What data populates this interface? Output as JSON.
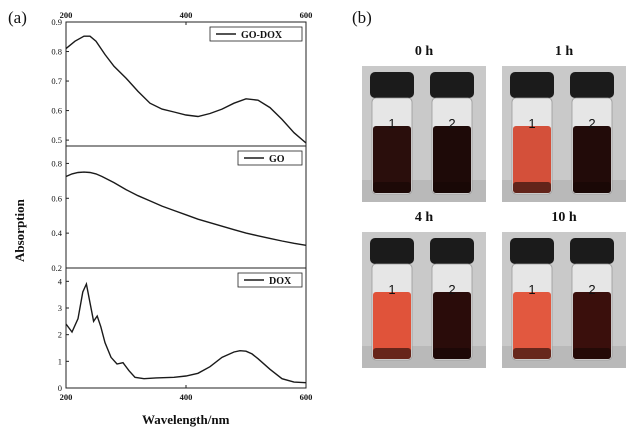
{
  "figure": {
    "panel_a_label": "(a)",
    "panel_b_label": "(b)"
  },
  "chart_data": [
    {
      "type": "line",
      "series": [
        {
          "name": "GO-DOX",
          "x": [
            200,
            215,
            230,
            240,
            250,
            265,
            280,
            300,
            320,
            340,
            360,
            380,
            400,
            420,
            440,
            460,
            480,
            500,
            520,
            540,
            560,
            580,
            600
          ],
          "values": [
            0.81,
            0.835,
            0.852,
            0.852,
            0.835,
            0.79,
            0.75,
            0.71,
            0.665,
            0.625,
            0.605,
            0.595,
            0.585,
            0.58,
            0.59,
            0.605,
            0.625,
            0.64,
            0.635,
            0.61,
            0.57,
            0.525,
            0.49
          ]
        }
      ],
      "xlim": [
        200,
        600
      ],
      "ylim": [
        0.48,
        0.9
      ],
      "yticks": [
        0.5,
        0.6,
        0.7,
        0.8,
        0.9
      ],
      "xticks_top": [
        200,
        400,
        600
      ],
      "legend": "top-right"
    },
    {
      "type": "line",
      "series": [
        {
          "name": "GO",
          "x": [
            200,
            210,
            220,
            230,
            240,
            250,
            260,
            280,
            300,
            320,
            340,
            360,
            380,
            400,
            420,
            440,
            460,
            480,
            500,
            520,
            540,
            560,
            580,
            600
          ],
          "values": [
            0.725,
            0.74,
            0.748,
            0.75,
            0.748,
            0.74,
            0.725,
            0.69,
            0.65,
            0.615,
            0.585,
            0.555,
            0.53,
            0.505,
            0.48,
            0.46,
            0.44,
            0.42,
            0.4,
            0.385,
            0.37,
            0.355,
            0.342,
            0.33
          ]
        }
      ],
      "xlim": [
        200,
        600
      ],
      "ylim": [
        0.2,
        0.9
      ],
      "yticks": [
        0.2,
        0.4,
        0.6,
        0.8
      ],
      "legend": "top-right"
    },
    {
      "type": "line",
      "series": [
        {
          "name": "DOX",
          "x": [
            200,
            210,
            220,
            228,
            234,
            240,
            246,
            252,
            258,
            265,
            275,
            285,
            295,
            305,
            315,
            330,
            350,
            380,
            400,
            420,
            440,
            460,
            480,
            490,
            500,
            510,
            520,
            540,
            560,
            580,
            600
          ],
          "values": [
            2.4,
            2.1,
            2.6,
            3.6,
            3.9,
            3.2,
            2.5,
            2.7,
            2.3,
            1.7,
            1.15,
            0.9,
            0.95,
            0.65,
            0.4,
            0.35,
            0.38,
            0.4,
            0.45,
            0.55,
            0.8,
            1.15,
            1.35,
            1.4,
            1.38,
            1.28,
            1.1,
            0.7,
            0.35,
            0.22,
            0.2
          ]
        }
      ],
      "xlim": [
        200,
        600
      ],
      "ylim": [
        0,
        4.5
      ],
      "yticks": [
        0,
        1,
        2,
        3,
        4
      ],
      "xticks": [
        200,
        400,
        600
      ],
      "legend": "top-right"
    }
  ],
  "axes": {
    "ylabel": "Absorption",
    "xlabel": "Wavelength/nm"
  },
  "photos": [
    {
      "time": "0 h",
      "vial1": "1",
      "vial2": "2",
      "liquid1": "#2a0e0c",
      "liquid2": "#1e0a08"
    },
    {
      "time": "1 h",
      "vial1": "1",
      "vial2": "2",
      "liquid1": "#d4503a",
      "liquid2": "#220b09"
    },
    {
      "time": "4 h",
      "vial1": "1",
      "vial2": "2",
      "liquid1": "#e0533a",
      "liquid2": "#2a0c0a"
    },
    {
      "time": "10 h",
      "vial1": "1",
      "vial2": "2",
      "liquid1": "#e2583f",
      "liquid2": "#3a0f0c"
    }
  ],
  "colors": {
    "line": "#1a1a1a",
    "photo_bg": "#c9c9c9",
    "cap": "#1b1b1b",
    "glass": "#e6e6e6"
  }
}
